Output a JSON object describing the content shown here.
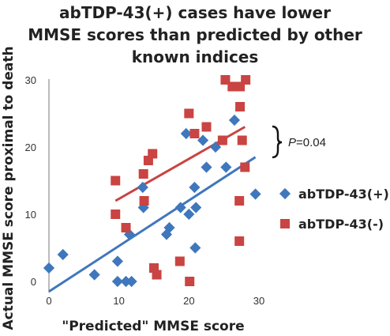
{
  "chart_data": {
    "type": "scatter",
    "title_lines": [
      "abTDP-43(+) cases have lower",
      "MMSE scores than predicted by other",
      "known indices"
    ],
    "xlabel": "\"Predicted\" MMSE score",
    "ylabel": "Actual MMSE score proximal to death",
    "xlim": [
      0,
      30
    ],
    "ylim": [
      0,
      30
    ],
    "x_ticks": [
      "0",
      "10",
      "20",
      "30"
    ],
    "y_ticks": [
      "0",
      "10",
      "20",
      "30"
    ],
    "grid": false,
    "legend_position": "right",
    "series": [
      {
        "name": "abTDP-43(+)",
        "marker": "diamond",
        "color": "#3f77bd",
        "points": [
          [
            0,
            2
          ],
          [
            2,
            4
          ],
          [
            6.5,
            1
          ],
          [
            9.8,
            3
          ],
          [
            9.8,
            0
          ],
          [
            11,
            0
          ],
          [
            11.8,
            0
          ],
          [
            11.5,
            7
          ],
          [
            13.4,
            14
          ],
          [
            13.5,
            11
          ],
          [
            16.8,
            7
          ],
          [
            17.2,
            8
          ],
          [
            18.8,
            11
          ],
          [
            19.6,
            22
          ],
          [
            20,
            10
          ],
          [
            20.8,
            14
          ],
          [
            21,
            11
          ],
          [
            20.9,
            5
          ],
          [
            22,
            21
          ],
          [
            22.5,
            17
          ],
          [
            23.8,
            20
          ],
          [
            25.3,
            17
          ],
          [
            26.5,
            24
          ],
          [
            29.5,
            13
          ]
        ],
        "trend": [
          [
            0,
            -1.5
          ],
          [
            29.5,
            18.5
          ]
        ]
      },
      {
        "name": "abTDP-43(-)",
        "marker": "square",
        "color": "#c94442",
        "points": [
          [
            9.5,
            15
          ],
          [
            9.5,
            10
          ],
          [
            11,
            8
          ],
          [
            13.5,
            16
          ],
          [
            13.6,
            12
          ],
          [
            14.2,
            18
          ],
          [
            14.8,
            19
          ],
          [
            15,
            2
          ],
          [
            15.4,
            1
          ],
          [
            18.7,
            3
          ],
          [
            20,
            25
          ],
          [
            20.1,
            0
          ],
          [
            20.8,
            22
          ],
          [
            22.5,
            23
          ],
          [
            24.8,
            21
          ],
          [
            25.2,
            30
          ],
          [
            26.2,
            29
          ],
          [
            26.8,
            29
          ],
          [
            27.3,
            29
          ],
          [
            27.3,
            26
          ],
          [
            27.2,
            12
          ],
          [
            27.2,
            6
          ],
          [
            27.6,
            21
          ],
          [
            28,
            17
          ],
          [
            28.1,
            30
          ]
        ],
        "trend": [
          [
            9.5,
            12
          ],
          [
            28,
            23
          ]
        ]
      }
    ],
    "annotation": {
      "p_label": "P",
      "p_value": "=0.04"
    }
  }
}
